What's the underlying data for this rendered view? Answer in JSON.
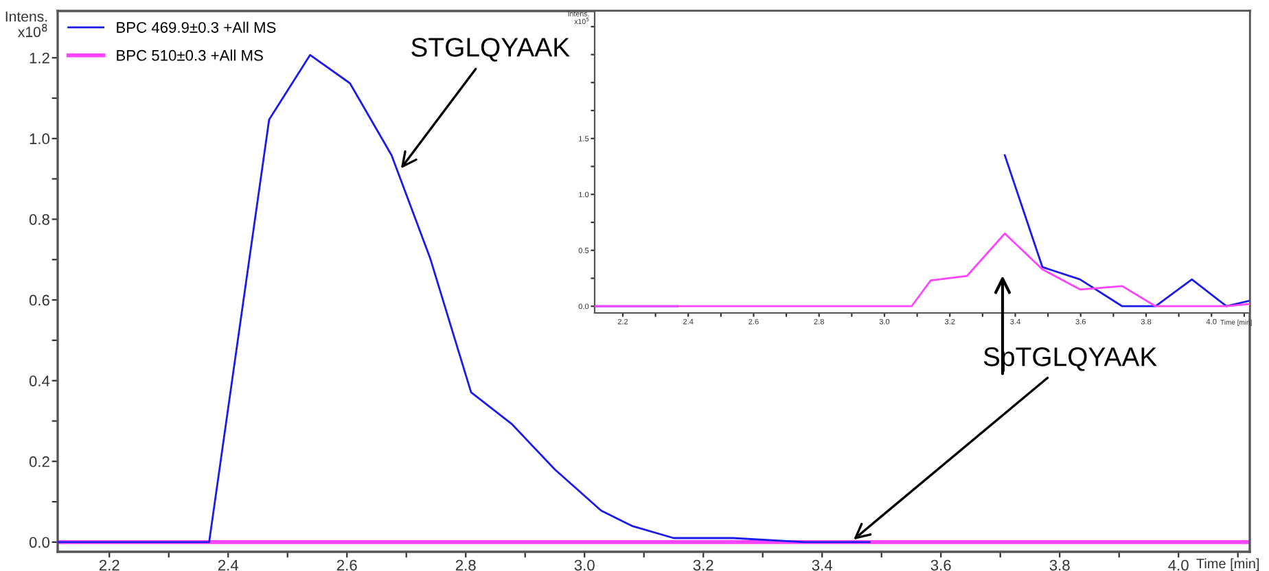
{
  "chart_data": [
    {
      "type": "line",
      "xlabel": "Time [min]",
      "ylabel": "Intens.\nx10$^{8}$",
      "xlim": [
        2.113,
        4.12
      ],
      "ylim": [
        -0.024,
        1.316
      ],
      "xticks": [
        2.2,
        {
          "value": 2.3,
          "label": null
        },
        2.4,
        {
          "value": 2.5,
          "label": null
        },
        2.6,
        {
          "value": 2.7,
          "label": null
        },
        2.8,
        {
          "value": 2.9,
          "label": null
        },
        {
          "value": 3.0,
          "label": "3.0"
        },
        {
          "value": 3.1,
          "label": null
        },
        3.2,
        {
          "value": 3.3,
          "label": null
        },
        3.4,
        {
          "value": 3.5,
          "label": null
        },
        3.6,
        {
          "value": 3.7,
          "label": null
        },
        3.8,
        {
          "value": 3.9,
          "label": null
        },
        {
          "value": 4.0,
          "label": "4.0"
        },
        {
          "value": 4.1,
          "label": null
        }
      ],
      "yticks": [
        {
          "value": 0.0,
          "label": "0.0"
        },
        {
          "value": 0.1,
          "label": null
        },
        0.2,
        {
          "value": 0.3,
          "label": null
        },
        0.4,
        {
          "value": 0.5,
          "label": null
        },
        0.6,
        {
          "value": 0.7,
          "label": null
        },
        0.8,
        {
          "value": 0.9,
          "label": null
        },
        {
          "value": 1.0,
          "label": "1.0"
        },
        {
          "value": 1.1,
          "label": null
        },
        1.2
      ],
      "series": [
        {
          "name": "BPC 469.9±0.3 +All MS",
          "color": "#1a1aee",
          "x": [
            2.113,
            2.368,
            2.469,
            2.538,
            2.605,
            2.675,
            2.74,
            2.809,
            2.878,
            2.95,
            3.028,
            3.08,
            3.15,
            3.25,
            3.37,
            3.48
          ],
          "values": [
            0,
            0,
            1.047,
            1.207,
            1.137,
            0.959,
            0.704,
            0.371,
            0.292,
            0.18,
            0.078,
            0.04,
            0.01,
            0.01,
            0.0,
            0.0
          ]
        },
        {
          "name": "BPC 510±0.3 +All MS",
          "color": "#ff44ff",
          "x": [
            2.113,
            4.12
          ],
          "values": [
            0,
            0
          ]
        }
      ],
      "annotations": [
        {
          "text": "STGLQYAAK",
          "x": 2.687,
          "y": 0.918
        },
        {
          "text": "SpTGLQYAAK",
          "x": 3.448,
          "y": 0.0
        }
      ],
      "legend": "top left",
      "grid": false
    },
    {
      "type": "line",
      "xlabel": "Time [min]",
      "ylabel": "Intens.\nx10$^{5}$",
      "xlim": [
        2.114,
        4.117
      ],
      "ylim": [
        -0.06,
        2.64
      ],
      "xticks": [
        2.2,
        {
          "value": 2.3,
          "label": null
        },
        2.4,
        {
          "value": 2.5,
          "label": null
        },
        2.6,
        {
          "value": 2.7,
          "label": null
        },
        2.8,
        {
          "value": 2.9,
          "label": null
        },
        {
          "value": 3.0,
          "label": "3.0"
        },
        {
          "value": 3.1,
          "label": null
        },
        3.2,
        {
          "value": 3.3,
          "label": null
        },
        3.4,
        {
          "value": 3.5,
          "label": null
        },
        3.6,
        {
          "value": 3.7,
          "label": null
        },
        3.8,
        {
          "value": 3.9,
          "label": null
        },
        {
          "value": 4.0,
          "label": "4.0"
        },
        {
          "value": 4.1,
          "label": null
        }
      ],
      "yticks": [
        {
          "value": 0.0,
          "label": "0.0"
        },
        {
          "value": 0.25,
          "label": null
        },
        0.5,
        {
          "value": 0.75,
          "label": null
        },
        {
          "value": 1.0,
          "label": "1.0"
        },
        {
          "value": 1.25,
          "label": null
        },
        1.5,
        {
          "value": 1.75,
          "label": null
        },
        {
          "value": 2.0,
          "label": null
        },
        {
          "value": 2.25,
          "label": null
        },
        {
          "value": 2.5,
          "label": null
        }
      ],
      "series": [
        {
          "color": "#1a1aee",
          "x": [
            2.114,
            2.368,
            2.373,
            3.252,
            3.368,
            3.483,
            3.598,
            3.727,
            3.829,
            3.94,
            4.046,
            4.117
          ],
          "values": [
            0,
            0,
            null,
            null,
            1.35,
            0.35,
            0.24,
            0,
            0,
            0.24,
            0,
            0.05
          ]
        },
        {
          "color": "#ff44ff",
          "x": [
            2.114,
            3.083,
            3.141,
            3.252,
            3.368,
            3.483,
            3.598,
            3.727,
            3.829,
            4.046,
            4.117
          ],
          "values": [
            0,
            0,
            0.23,
            0.27,
            0.65,
            0.33,
            0.15,
            0.18,
            0,
            0,
            0.02
          ]
        }
      ],
      "grid": false
    }
  ]
}
